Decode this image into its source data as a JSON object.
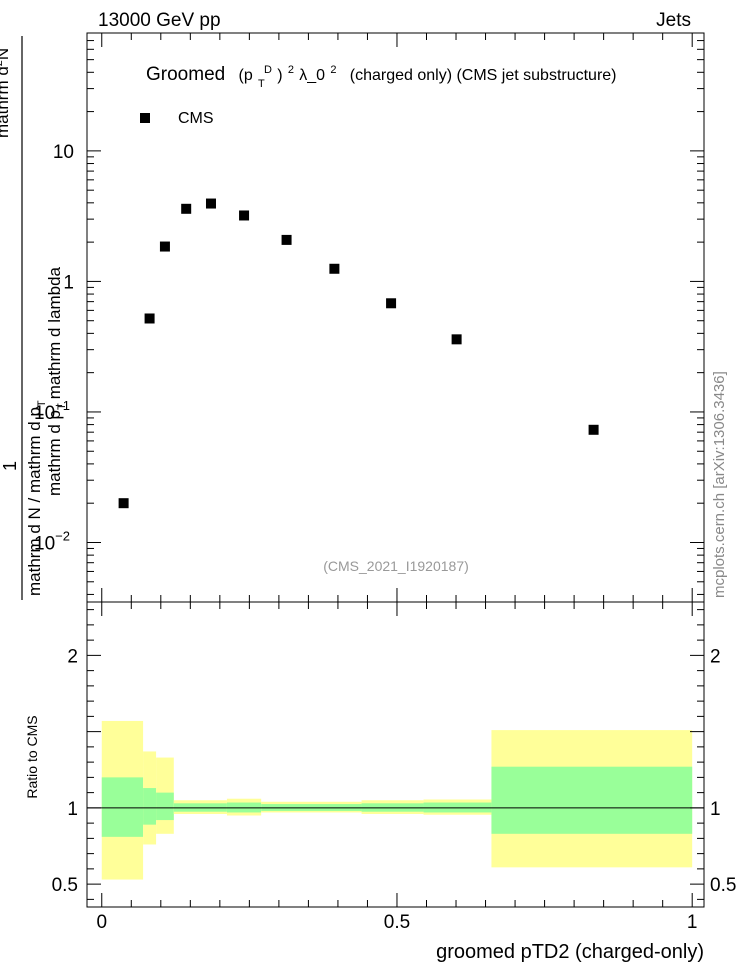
{
  "header": {
    "energy_label": "13000 GeV pp",
    "process_label": "Jets"
  },
  "sidebar": {
    "watermark": "mcplots.cern.ch [arXiv:1306.3436]"
  },
  "chart_data": [
    {
      "type": "scatter",
      "title": {
        "prefix": "Groomed",
        "p": "(p",
        "p_sub": "T",
        "p_sup": "D",
        "p_sup2": ")",
        "p_pow": "2",
        "lambda": " λ_0",
        "lambda_pow": "2",
        "suffix": "(charged only) (CMS jet substructure)"
      },
      "analysis_id": "(CMS_2021_I1920187)",
      "ylabel": {
        "numerator": "1",
        "denom_line1": "mathrm d N / mathrm d p",
        "denom_line1_sub": "T",
        "denom_line2": "mathrm d",
        "denom_line2_sup": "2",
        "denom_line2_rest": "N",
        "denom_line3": "mathrm d p",
        "denom_line3_sub": "T",
        "denom_line3_rest": "mathrm d lambda"
      },
      "y_scale": "log",
      "ylim": [
        0.0035,
        80
      ],
      "y_ticks": [
        {
          "value": 0.01,
          "label": "10",
          "exp": "−2"
        },
        {
          "value": 0.1,
          "label": "10",
          "exp": "−1"
        },
        {
          "value": 1,
          "label": "1",
          "exp": ""
        },
        {
          "value": 10,
          "label": "10",
          "exp": ""
        }
      ],
      "xlim": [
        -0.025,
        1.02
      ],
      "legend": {
        "position": "top-left",
        "entries": [
          "CMS"
        ]
      },
      "series": [
        {
          "name": "CMS",
          "color": "#000000",
          "marker": "square",
          "x": [
            0.037,
            0.081,
            0.107,
            0.143,
            0.185,
            0.241,
            0.313,
            0.394,
            0.49,
            0.601,
            0.833
          ],
          "y": [
            0.02,
            0.52,
            1.85,
            3.6,
            3.95,
            3.2,
            2.08,
            1.25,
            0.68,
            0.36,
            0.073
          ]
        }
      ]
    },
    {
      "type": "area",
      "ylabel": "Ratio to CMS",
      "xlabel": "groomed pTD2 (charged-only)",
      "ylim": [
        0.35,
        2.35
      ],
      "xlim": [
        -0.025,
        1.02
      ],
      "x_ticks": [
        {
          "value": 0,
          "label": "0"
        },
        {
          "value": 0.5,
          "label": "0.5"
        },
        {
          "value": 1,
          "label": "1"
        }
      ],
      "y_ticks": [
        {
          "value": 0.5,
          "label": "0.5"
        },
        {
          "value": 1,
          "label": "1"
        },
        {
          "value": 2,
          "label": "2"
        }
      ],
      "reference_line": 1,
      "band_colors": {
        "outer": "#ffff99",
        "inner": "#99ff99"
      },
      "bins": [
        {
          "x0": 0.0,
          "x1": 0.07,
          "outer": [
            0.53,
            1.57
          ],
          "inner": [
            0.81,
            1.2
          ]
        },
        {
          "x0": 0.07,
          "x1": 0.092,
          "outer": [
            0.76,
            1.37
          ],
          "inner": [
            0.89,
            1.13
          ]
        },
        {
          "x0": 0.092,
          "x1": 0.122,
          "outer": [
            0.83,
            1.33
          ],
          "inner": [
            0.92,
            1.1
          ]
        },
        {
          "x0": 0.122,
          "x1": 0.212,
          "outer": [
            0.96,
            1.05
          ],
          "inner": [
            0.975,
            1.03
          ]
        },
        {
          "x0": 0.212,
          "x1": 0.27,
          "outer": [
            0.95,
            1.06
          ],
          "inner": [
            0.97,
            1.035
          ]
        },
        {
          "x0": 0.27,
          "x1": 0.44,
          "outer": [
            0.97,
            1.04
          ],
          "inner": [
            0.98,
            1.025
          ]
        },
        {
          "x0": 0.44,
          "x1": 0.545,
          "outer": [
            0.96,
            1.05
          ],
          "inner": [
            0.975,
            1.03
          ]
        },
        {
          "x0": 0.545,
          "x1": 0.66,
          "outer": [
            0.955,
            1.055
          ],
          "inner": [
            0.97,
            1.035
          ]
        },
        {
          "x0": 0.66,
          "x1": 1.0,
          "outer": [
            0.61,
            1.51
          ],
          "inner": [
            0.83,
            1.27
          ]
        }
      ]
    }
  ]
}
